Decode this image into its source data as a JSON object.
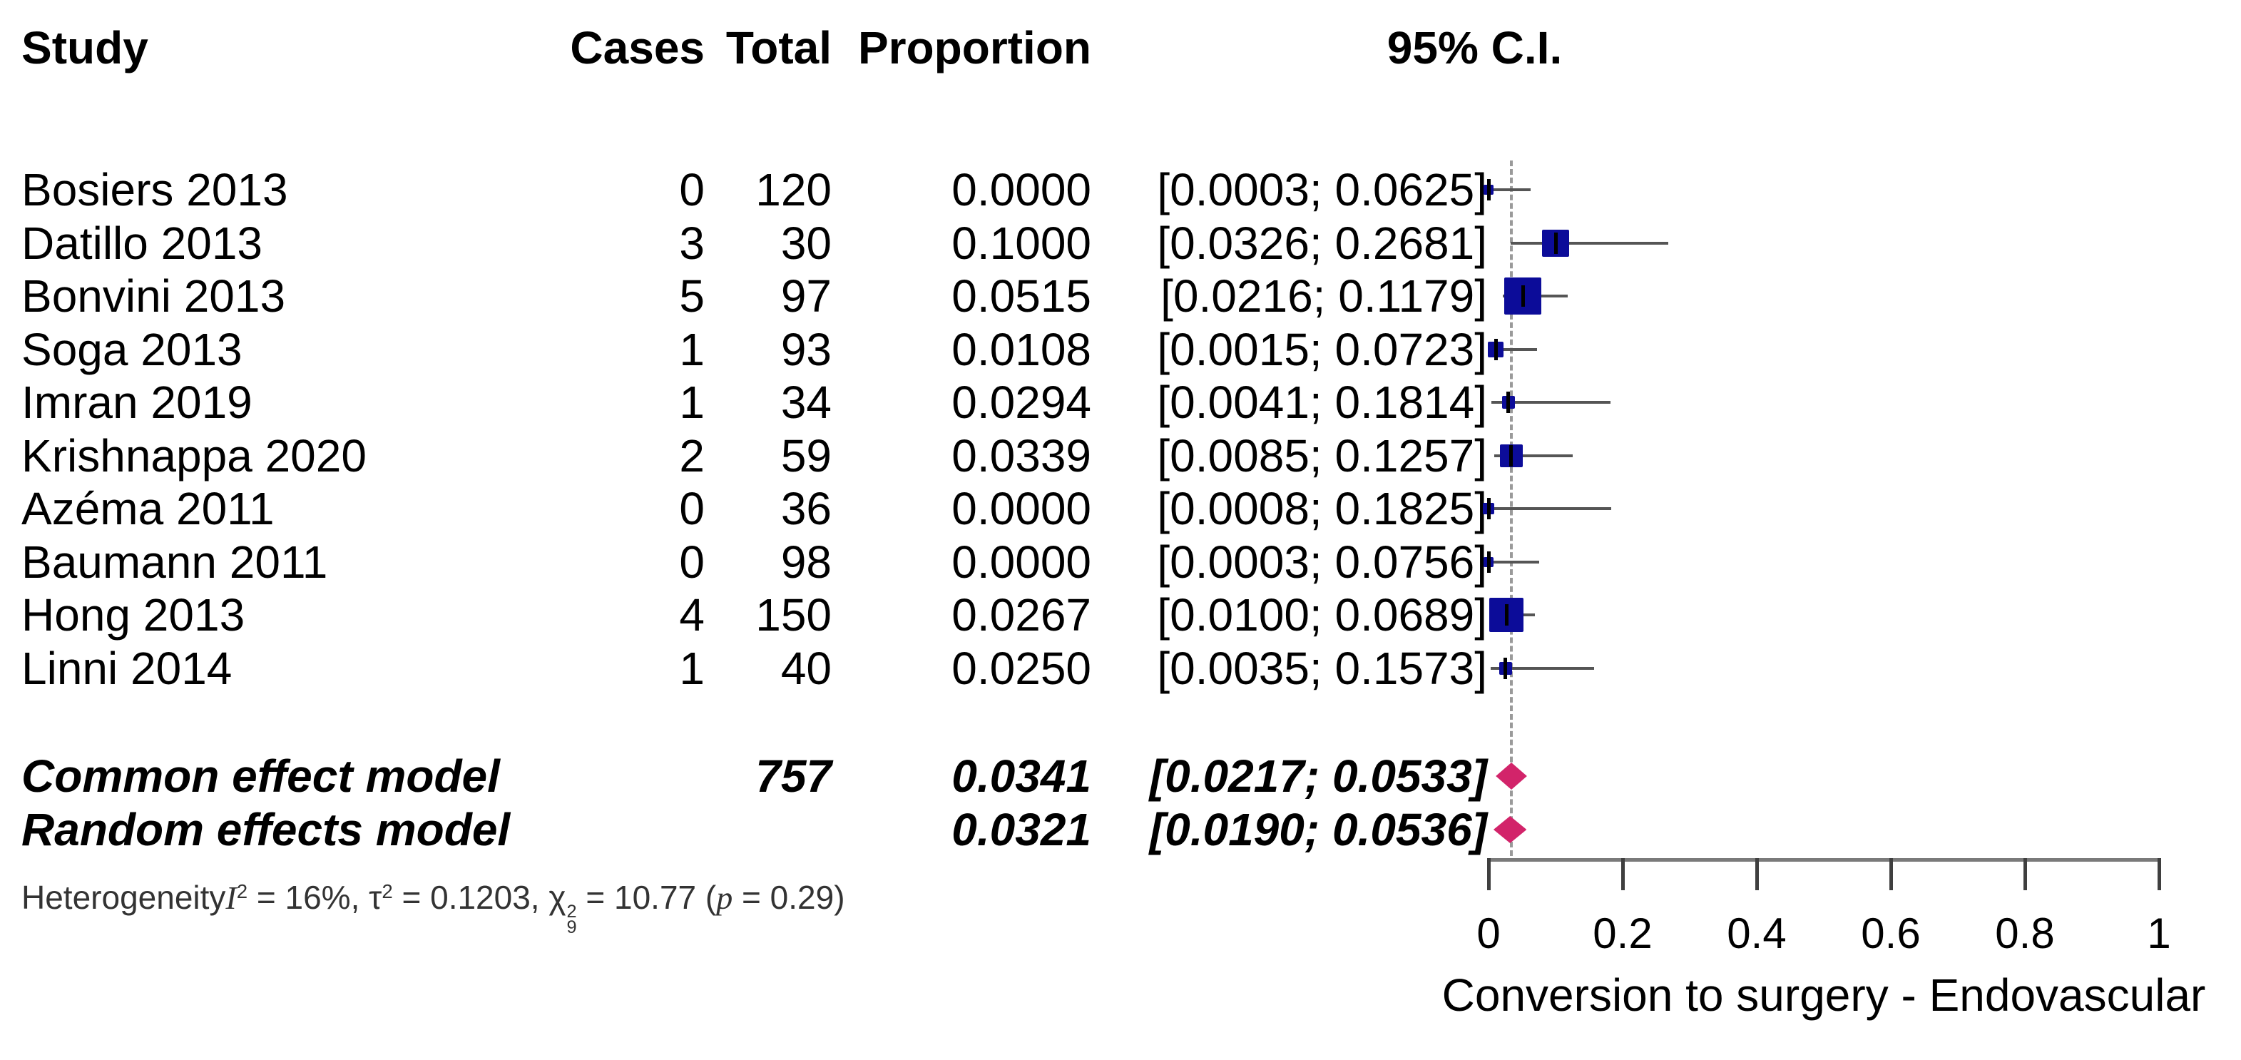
{
  "chart_data": {
    "type": "forest",
    "title": "",
    "xlabel": "Conversion to surgery - Endovascular",
    "xlim": [
      0,
      1
    ],
    "axis": {
      "tick_labels": [
        "0",
        "0.2",
        "0.4",
        "0.6",
        "0.8",
        "1"
      ],
      "tick_values": [
        0,
        0.2,
        0.4,
        0.6,
        0.8,
        1
      ]
    },
    "header": {
      "study": "Study",
      "cases": "Cases",
      "total": "Total",
      "proportion": "Proportion",
      "ci": "95% C.I."
    },
    "studies": [
      {
        "name": "Bosiers 2013",
        "cases": "0",
        "total": "120",
        "proportion": "0.0000",
        "ci": "[0.0003; 0.0625]",
        "est": 0.0,
        "lower": 0.0003,
        "upper": 0.0625,
        "size": 14
      },
      {
        "name": "Datillo 2013",
        "cases": "3",
        "total": "30",
        "proportion": "0.1000",
        "ci": "[0.0326; 0.2681]",
        "est": 0.1,
        "lower": 0.0326,
        "upper": 0.2681,
        "size": 38
      },
      {
        "name": "Bonvini 2013",
        "cases": "5",
        "total": "97",
        "proportion": "0.0515",
        "ci": "[0.0216; 0.1179]",
        "est": 0.0515,
        "lower": 0.0216,
        "upper": 0.1179,
        "size": 52
      },
      {
        "name": "Soga 2013",
        "cases": "1",
        "total": "93",
        "proportion": "0.0108",
        "ci": "[0.0015; 0.0723]",
        "est": 0.0108,
        "lower": 0.0015,
        "upper": 0.0723,
        "size": 22
      },
      {
        "name": "Imran 2019",
        "cases": "1",
        "total": "34",
        "proportion": "0.0294",
        "ci": "[0.0041; 0.1814]",
        "est": 0.0294,
        "lower": 0.0041,
        "upper": 0.1814,
        "size": 18
      },
      {
        "name": "Krishnappa 2020",
        "cases": "2",
        "total": "59",
        "proportion": "0.0339",
        "ci": "[0.0085; 0.1257]",
        "est": 0.0339,
        "lower": 0.0085,
        "upper": 0.1257,
        "size": 32
      },
      {
        "name": "Azéma 2011",
        "cases": "0",
        "total": "36",
        "proportion": "0.0000",
        "ci": "[0.0008; 0.1825]",
        "est": 0.0,
        "lower": 0.0008,
        "upper": 0.1825,
        "size": 16
      },
      {
        "name": "Baumann 2011",
        "cases": "0",
        "total": "98",
        "proportion": "0.0000",
        "ci": "[0.0003; 0.0756]",
        "est": 0.0,
        "lower": 0.0003,
        "upper": 0.0756,
        "size": 14
      },
      {
        "name": "Hong 2013",
        "cases": "4",
        "total": "150",
        "proportion": "0.0267",
        "ci": "[0.0100; 0.0689]",
        "est": 0.0267,
        "lower": 0.01,
        "upper": 0.0689,
        "size": 48
      },
      {
        "name": "Linni 2014",
        "cases": "1",
        "total": "40",
        "proportion": "0.0250",
        "ci": "[0.0035; 0.1573]",
        "est": 0.025,
        "lower": 0.0035,
        "upper": 0.1573,
        "size": 18
      }
    ],
    "summaries": [
      {
        "label": "Common effect model",
        "total": "757",
        "proportion": "0.0341",
        "ci": "[0.0217; 0.0533]",
        "est": 0.0341,
        "lower": 0.0217,
        "upper": 0.0533
      },
      {
        "label": "Random effects model",
        "total": "",
        "proportion": "0.0321",
        "ci": "[0.0190; 0.0536]",
        "est": 0.0321,
        "lower": 0.019,
        "upper": 0.0536
      }
    ],
    "heterogeneity": {
      "label": "Heterogeneity",
      "i": "I",
      "i_sup": "2",
      "seg1": " = 16%, τ",
      "tau_sup": "2",
      "seg2": " = 0.1203, χ",
      "chi_sup": "2",
      "chi_sub": "9",
      "seg3": " = 10.77 (",
      "p": "p",
      "seg4": " = 0.29)"
    },
    "colors": {
      "square": "#0c0c99",
      "diamond": "#d2246a",
      "whisker": "#555555",
      "dashed": "#9a9a9a",
      "axis_line": "#7a7a7a",
      "axis_tick": "#3f3f3f"
    },
    "reference_line_value": 0.0341
  }
}
